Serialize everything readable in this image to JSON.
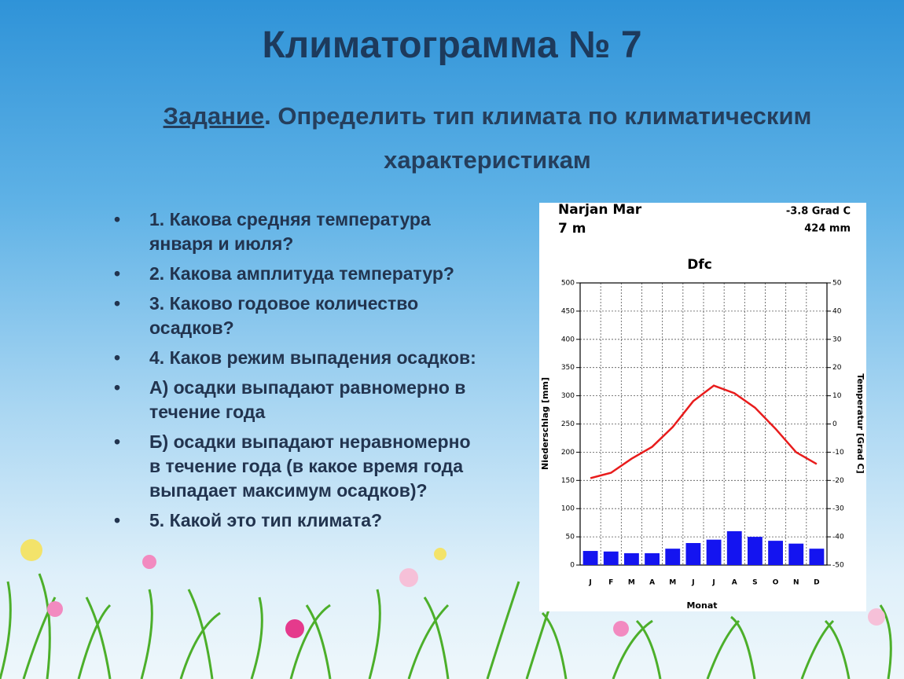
{
  "title": "Климатограмма № 7",
  "task": {
    "label": "Задание",
    "text": ". Определить тип климата по климатическим характеристикам"
  },
  "bullets": [
    "1. Какова средняя температура января и июля?",
    "2. Какова амплитуда температур?",
    "3. Каково годовое количество осадков?",
    "4. Каков режим выпадения осадков:",
    "А) осадки выпадают равномерно в течение года",
    "Б) осадки выпадают неравномерно в течение года (в какое время года выпадает максимум осадков)?",
    "5. Какой это тип климата?"
  ],
  "chart_data": {
    "type": "climate",
    "station": "Narjan Mar",
    "elevation": "7 m",
    "annual_temperature": "-3.8 Grad C",
    "annual_precipitation": "424 mm",
    "title": "Dfc",
    "x_label": "Monat",
    "y_label": "Niederschlag [mm]",
    "y2_label": "Temperatur [Grad C]",
    "categories": [
      "J",
      "F",
      "M",
      "A",
      "M",
      "J",
      "J",
      "A",
      "S",
      "O",
      "N",
      "D"
    ],
    "series": [
      {
        "name": "Niederschlag",
        "type": "bar",
        "color": "#1414f0",
        "values": [
          25,
          24,
          21,
          21,
          29,
          39,
          45,
          60,
          50,
          43,
          38,
          29
        ]
      },
      {
        "name": "Temperatur",
        "type": "line",
        "axis": "y2",
        "color": "#e81c1c",
        "values": [
          -19.2,
          -17.3,
          -12.3,
          -8.1,
          -1.1,
          8.1,
          13.6,
          10.9,
          5.8,
          -1.7,
          -10,
          -14.2
        ]
      }
    ],
    "ylim": [
      0,
      500
    ],
    "yticks": [
      0,
      50,
      100,
      150,
      200,
      250,
      300,
      350,
      400,
      450,
      500
    ],
    "y2lim": [
      -50,
      50
    ],
    "y2ticks": [
      -50,
      -40,
      -30,
      -20,
      -10,
      0,
      10,
      20,
      30,
      40,
      50
    ],
    "grid": true
  }
}
